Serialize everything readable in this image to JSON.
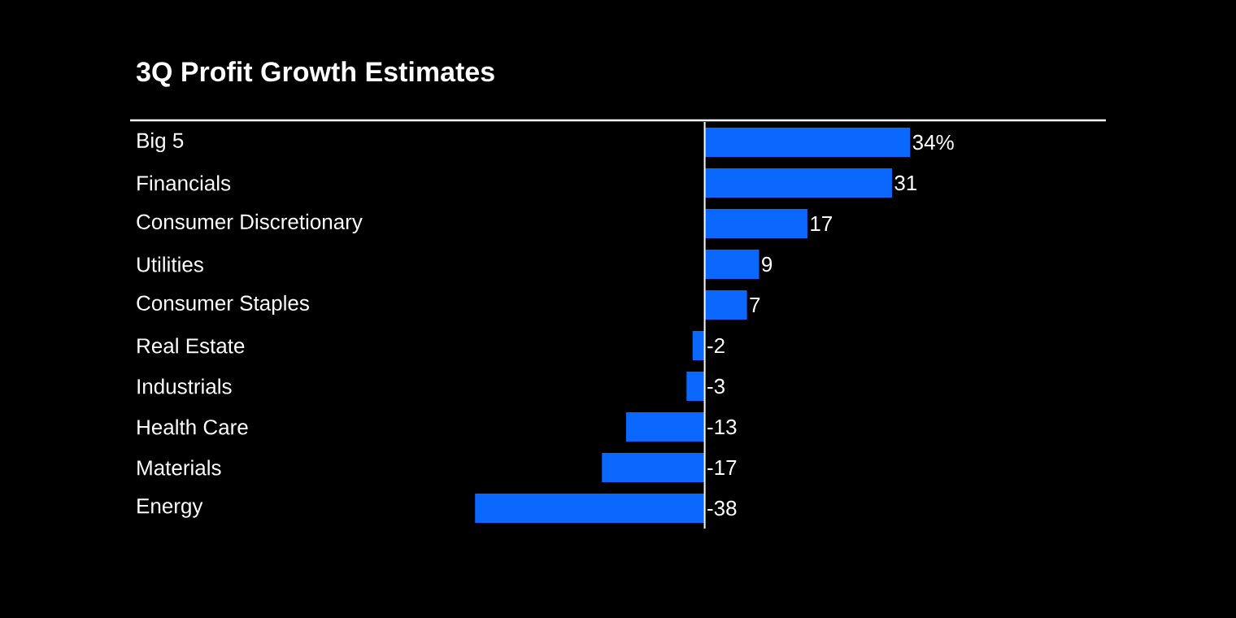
{
  "chart_data": {
    "type": "bar",
    "orientation": "horizontal",
    "title": "3Q Profit Growth Estimates",
    "categories": [
      "Big 5",
      "Financials",
      "Consumer Discretionary",
      "Utilities",
      "Consumer Staples",
      "Real Estate",
      "Industrials",
      "Health Care",
      "Materials",
      "Energy"
    ],
    "values": [
      34,
      31,
      17,
      9,
      7,
      -2,
      -3,
      -13,
      -17,
      -38
    ],
    "value_labels": [
      "34%",
      "31",
      "17",
      "9",
      "7",
      "-2",
      "-3",
      "-13",
      "-17",
      "-38"
    ],
    "color": "#0a68ff"
  }
}
